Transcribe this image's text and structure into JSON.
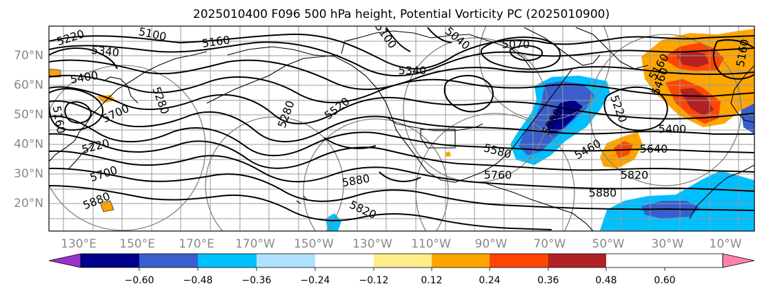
{
  "title": "2025010400 F096 500 hPa height, Potential Vorticity PC (2025010900)",
  "lon_labels": [
    "130°E",
    "150°E",
    "170°E",
    "170°W",
    "150°W",
    "130°W",
    "110°W",
    "90°W",
    "70°W",
    "50°W",
    "30°W",
    "10°W"
  ],
  "lat_labels": [
    "70°N",
    "60°N",
    "50°N",
    "40°N",
    "30°N",
    "20°N"
  ],
  "colorbar": {
    "colors": [
      "#9932cc",
      "#00008b",
      "#3a5fcd",
      "#00bfff",
      "#b0e2ff",
      "#ffffff",
      "#ffec8b",
      "#ffa500",
      "#ff4500",
      "#b22222",
      "#ff82ab"
    ],
    "tick_labels": [
      "−0.60",
      "−0.48",
      "−0.36",
      "−0.24",
      "−0.12",
      "0.12",
      "0.24",
      "0.36",
      "0.48",
      "0.60"
    ]
  },
  "height_labels": [
    "5220",
    "5100",
    "5340",
    "5160",
    "5400",
    "5280",
    "5160",
    "5700",
    "5220",
    "5700",
    "5880",
    "5280",
    "5520",
    "5340",
    "5100",
    "5880",
    "5820",
    "5760",
    "5580",
    "5880",
    "5820",
    "5640",
    "5460",
    "5400",
    "5220",
    "5580",
    "5460",
    "5160",
    "5040",
    "5070",
    "5160"
  ]
}
